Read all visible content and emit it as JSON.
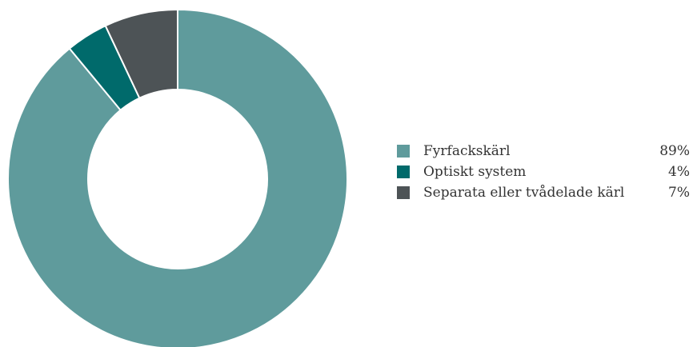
{
  "chart_data": {
    "type": "pie",
    "variant": "donut",
    "title": "",
    "legend_position": "right",
    "slices": [
      {
        "label": "Fyrfackskärl",
        "value": 89,
        "value_label": "89%",
        "color": "#5f9b9c"
      },
      {
        "label": "Optiskt system",
        "value": 4,
        "value_label": "4%",
        "color": "#006a6b"
      },
      {
        "label": "Separata eller tvådelade kärl",
        "value": 7,
        "value_label": "7%",
        "color": "#4d5356"
      }
    ]
  }
}
